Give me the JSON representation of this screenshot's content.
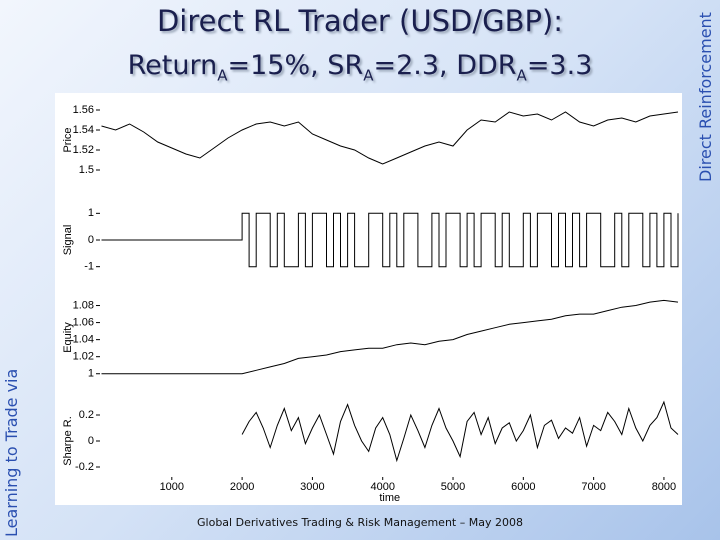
{
  "slide": {
    "title": "Direct RL Trader (USD/GBP):",
    "subtitle": [
      {
        "text": "Return"
      },
      {
        "text": "A",
        "sub": true
      },
      {
        "text": "=15%, SR"
      },
      {
        "text": "A",
        "sub": true
      },
      {
        "text": "=2.3, DDR"
      },
      {
        "text": "A",
        "sub": true
      },
      {
        "text": "=3.3"
      }
    ],
    "side_right": "Direct Reinforcement",
    "side_left": "Learning to Trade via",
    "footer": "Global Derivatives Trading & Risk Management – May 2008"
  },
  "chart_data": [
    {
      "type": "line",
      "ylabel": "Price",
      "color": "#000000",
      "x": [
        0,
        200,
        400,
        600,
        800,
        1000,
        1200,
        1400,
        1600,
        1800,
        2000,
        2200,
        2400,
        2600,
        2800,
        3000,
        3200,
        3400,
        3600,
        3800,
        4000,
        4200,
        4400,
        4600,
        4800,
        5000,
        5200,
        5400,
        5600,
        5800,
        6000,
        6200,
        6400,
        6600,
        6800,
        7000,
        7200,
        7400,
        7600,
        7800,
        8000,
        8200
      ],
      "values": [
        1.544,
        1.54,
        1.546,
        1.538,
        1.528,
        1.522,
        1.516,
        1.512,
        1.522,
        1.532,
        1.54,
        1.546,
        1.548,
        1.544,
        1.548,
        1.536,
        1.53,
        1.524,
        1.52,
        1.512,
        1.506,
        1.512,
        1.518,
        1.524,
        1.528,
        1.524,
        1.54,
        1.55,
        1.548,
        1.558,
        1.554,
        1.556,
        1.55,
        1.558,
        1.548,
        1.544,
        1.55,
        1.552,
        1.548,
        1.554,
        1.556,
        1.558
      ],
      "xlim": [
        0,
        8200
      ],
      "ylim": [
        1.49,
        1.57
      ],
      "yticks": [
        1.5,
        1.52,
        1.54,
        1.56
      ]
    },
    {
      "type": "step",
      "ylabel": "Signal",
      "color": "#000000",
      "x": [
        0,
        2000,
        2100,
        2200,
        2300,
        2400,
        2500,
        2600,
        2700,
        2800,
        2900,
        3000,
        3100,
        3200,
        3300,
        3400,
        3500,
        3600,
        3700,
        3800,
        3900,
        4000,
        4100,
        4200,
        4300,
        4400,
        4500,
        4600,
        4700,
        4800,
        4900,
        5000,
        5100,
        5200,
        5300,
        5400,
        5500,
        5600,
        5700,
        5800,
        5900,
        6000,
        6100,
        6200,
        6300,
        6400,
        6500,
        6600,
        6700,
        6800,
        6900,
        7000,
        7100,
        7200,
        7300,
        7400,
        7500,
        7600,
        7700,
        7800,
        7900,
        8000,
        8100,
        8200
      ],
      "values": [
        0,
        1,
        -1,
        1,
        1,
        -1,
        1,
        -1,
        -1,
        1,
        -1,
        1,
        1,
        -1,
        1,
        -1,
        1,
        -1,
        -1,
        1,
        1,
        -1,
        1,
        -1,
        1,
        1,
        -1,
        -1,
        1,
        -1,
        1,
        1,
        -1,
        1,
        -1,
        1,
        1,
        -1,
        1,
        -1,
        -1,
        1,
        -1,
        1,
        1,
        -1,
        1,
        -1,
        1,
        -1,
        1,
        1,
        -1,
        -1,
        1,
        -1,
        1,
        1,
        -1,
        1,
        -1,
        1,
        -1,
        1
      ],
      "xlim": [
        0,
        8200
      ],
      "ylim": [
        -1.5,
        1.5
      ],
      "yticks": [
        -1,
        0,
        1
      ]
    },
    {
      "type": "line",
      "ylabel": "Equity",
      "color": "#000000",
      "x": [
        0,
        200,
        400,
        600,
        800,
        1000,
        1200,
        1400,
        1600,
        1800,
        2000,
        2200,
        2400,
        2600,
        2800,
        3000,
        3200,
        3400,
        3600,
        3800,
        4000,
        4200,
        4400,
        4600,
        4800,
        5000,
        5200,
        5400,
        5600,
        5800,
        6000,
        6200,
        6400,
        6600,
        6800,
        7000,
        7200,
        7400,
        7600,
        7800,
        8000,
        8200
      ],
      "values": [
        1,
        1,
        1,
        1,
        1,
        1,
        1,
        1,
        1,
        1,
        1,
        1.004,
        1.008,
        1.012,
        1.018,
        1.02,
        1.022,
        1.026,
        1.028,
        1.03,
        1.03,
        1.034,
        1.036,
        1.034,
        1.038,
        1.04,
        1.046,
        1.05,
        1.054,
        1.058,
        1.06,
        1.062,
        1.064,
        1.068,
        1.07,
        1.07,
        1.074,
        1.078,
        1.08,
        1.084,
        1.086,
        1.084
      ],
      "xlim": [
        0,
        8200
      ],
      "ylim": [
        0.995,
        1.09
      ],
      "yticks": [
        1,
        1.02,
        1.04,
        1.06,
        1.08
      ]
    },
    {
      "type": "line",
      "ylabel": "Sharpe R.",
      "xlabel": "time",
      "color": "#000000",
      "x": [
        2000,
        2100,
        2200,
        2300,
        2400,
        2500,
        2600,
        2700,
        2800,
        2900,
        3000,
        3100,
        3200,
        3300,
        3400,
        3500,
        3600,
        3700,
        3800,
        3900,
        4000,
        4100,
        4200,
        4300,
        4400,
        4500,
        4600,
        4700,
        4800,
        4900,
        5000,
        5100,
        5200,
        5300,
        5400,
        5500,
        5600,
        5700,
        5800,
        5900,
        6000,
        6100,
        6200,
        6300,
        6400,
        6500,
        6600,
        6700,
        6800,
        6900,
        7000,
        7100,
        7200,
        7300,
        7400,
        7500,
        7600,
        7700,
        7800,
        7900,
        8000,
        8100,
        8200
      ],
      "values": [
        0.05,
        0.15,
        0.22,
        0.1,
        -0.05,
        0.12,
        0.25,
        0.08,
        0.18,
        -0.02,
        0.1,
        0.2,
        0.05,
        -0.1,
        0.15,
        0.28,
        0.12,
        0.0,
        -0.08,
        0.1,
        0.18,
        0.05,
        -0.15,
        0.02,
        0.2,
        0.08,
        -0.05,
        0.12,
        0.25,
        0.1,
        0.0,
        -0.12,
        0.15,
        0.22,
        0.05,
        0.18,
        -0.02,
        0.1,
        0.14,
        0.0,
        0.08,
        0.2,
        -0.05,
        0.12,
        0.16,
        0.02,
        0.1,
        0.06,
        0.18,
        -0.04,
        0.12,
        0.08,
        0.22,
        0.15,
        0.05,
        0.25,
        0.1,
        0.0,
        0.12,
        0.18,
        0.3,
        0.1,
        0.05
      ],
      "xlim": [
        0,
        8200
      ],
      "ylim": [
        -0.3,
        0.3
      ],
      "yticks": [
        -0.2,
        0,
        0.2
      ],
      "xticks": [
        1000,
        2000,
        3000,
        4000,
        5000,
        6000,
        7000,
        8000
      ]
    }
  ]
}
